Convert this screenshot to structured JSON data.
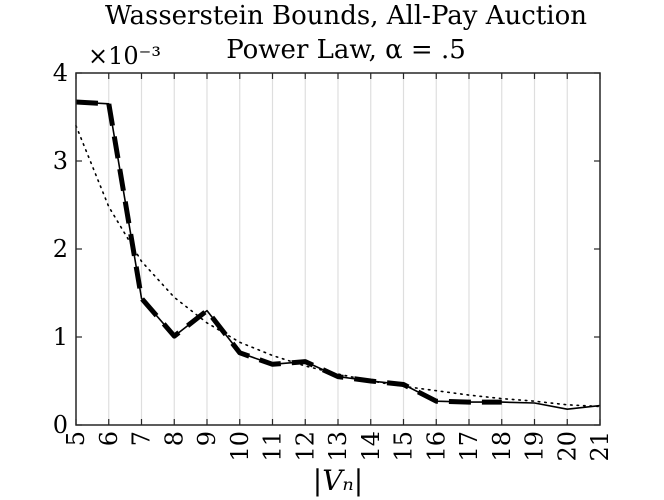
{
  "chart_data": {
    "type": "line",
    "title_lines": [
      "Wasserstein Bounds, All-Pay Auction",
      "Power Law, α = .5"
    ],
    "xlabel": "|Vₙ|",
    "ylabel": "",
    "y_exponent_label": "×10⁻³",
    "xlim": [
      5,
      21
    ],
    "ylim": [
      0,
      4
    ],
    "x_ticks": [
      5,
      6,
      7,
      8,
      9,
      10,
      11,
      12,
      13,
      14,
      15,
      16,
      17,
      18,
      19,
      20,
      21
    ],
    "y_ticks": [
      0,
      1,
      2,
      3,
      4
    ],
    "grid": "vertical",
    "series": [
      {
        "style": "solid",
        "x": [
          5,
          6,
          7,
          8,
          9,
          10,
          11,
          12,
          13,
          14,
          15,
          16,
          17,
          18,
          19,
          20,
          21
        ],
        "values": [
          3.67,
          3.65,
          1.44,
          1.01,
          1.3,
          0.82,
          0.69,
          0.72,
          0.55,
          0.5,
          0.46,
          0.27,
          0.26,
          0.26,
          0.25,
          0.18,
          0.22
        ]
      },
      {
        "style": "dashed",
        "x": [
          5,
          6,
          7,
          8,
          9,
          10,
          11,
          12,
          13,
          14,
          15,
          16,
          17,
          18
        ],
        "values": [
          3.67,
          3.65,
          1.44,
          1.01,
          1.3,
          0.82,
          0.69,
          0.72,
          0.55,
          0.5,
          0.46,
          0.27,
          0.26,
          0.26
        ]
      },
      {
        "style": "dotted",
        "x": [
          5,
          6,
          7,
          8,
          9,
          10,
          11,
          12,
          13,
          14,
          15,
          16,
          17,
          18,
          19,
          20,
          21
        ],
        "values": [
          3.4,
          2.48,
          1.86,
          1.45,
          1.16,
          0.94,
          0.79,
          0.67,
          0.58,
          0.5,
          0.44,
          0.39,
          0.34,
          0.3,
          0.27,
          0.23,
          0.21
        ]
      }
    ]
  }
}
